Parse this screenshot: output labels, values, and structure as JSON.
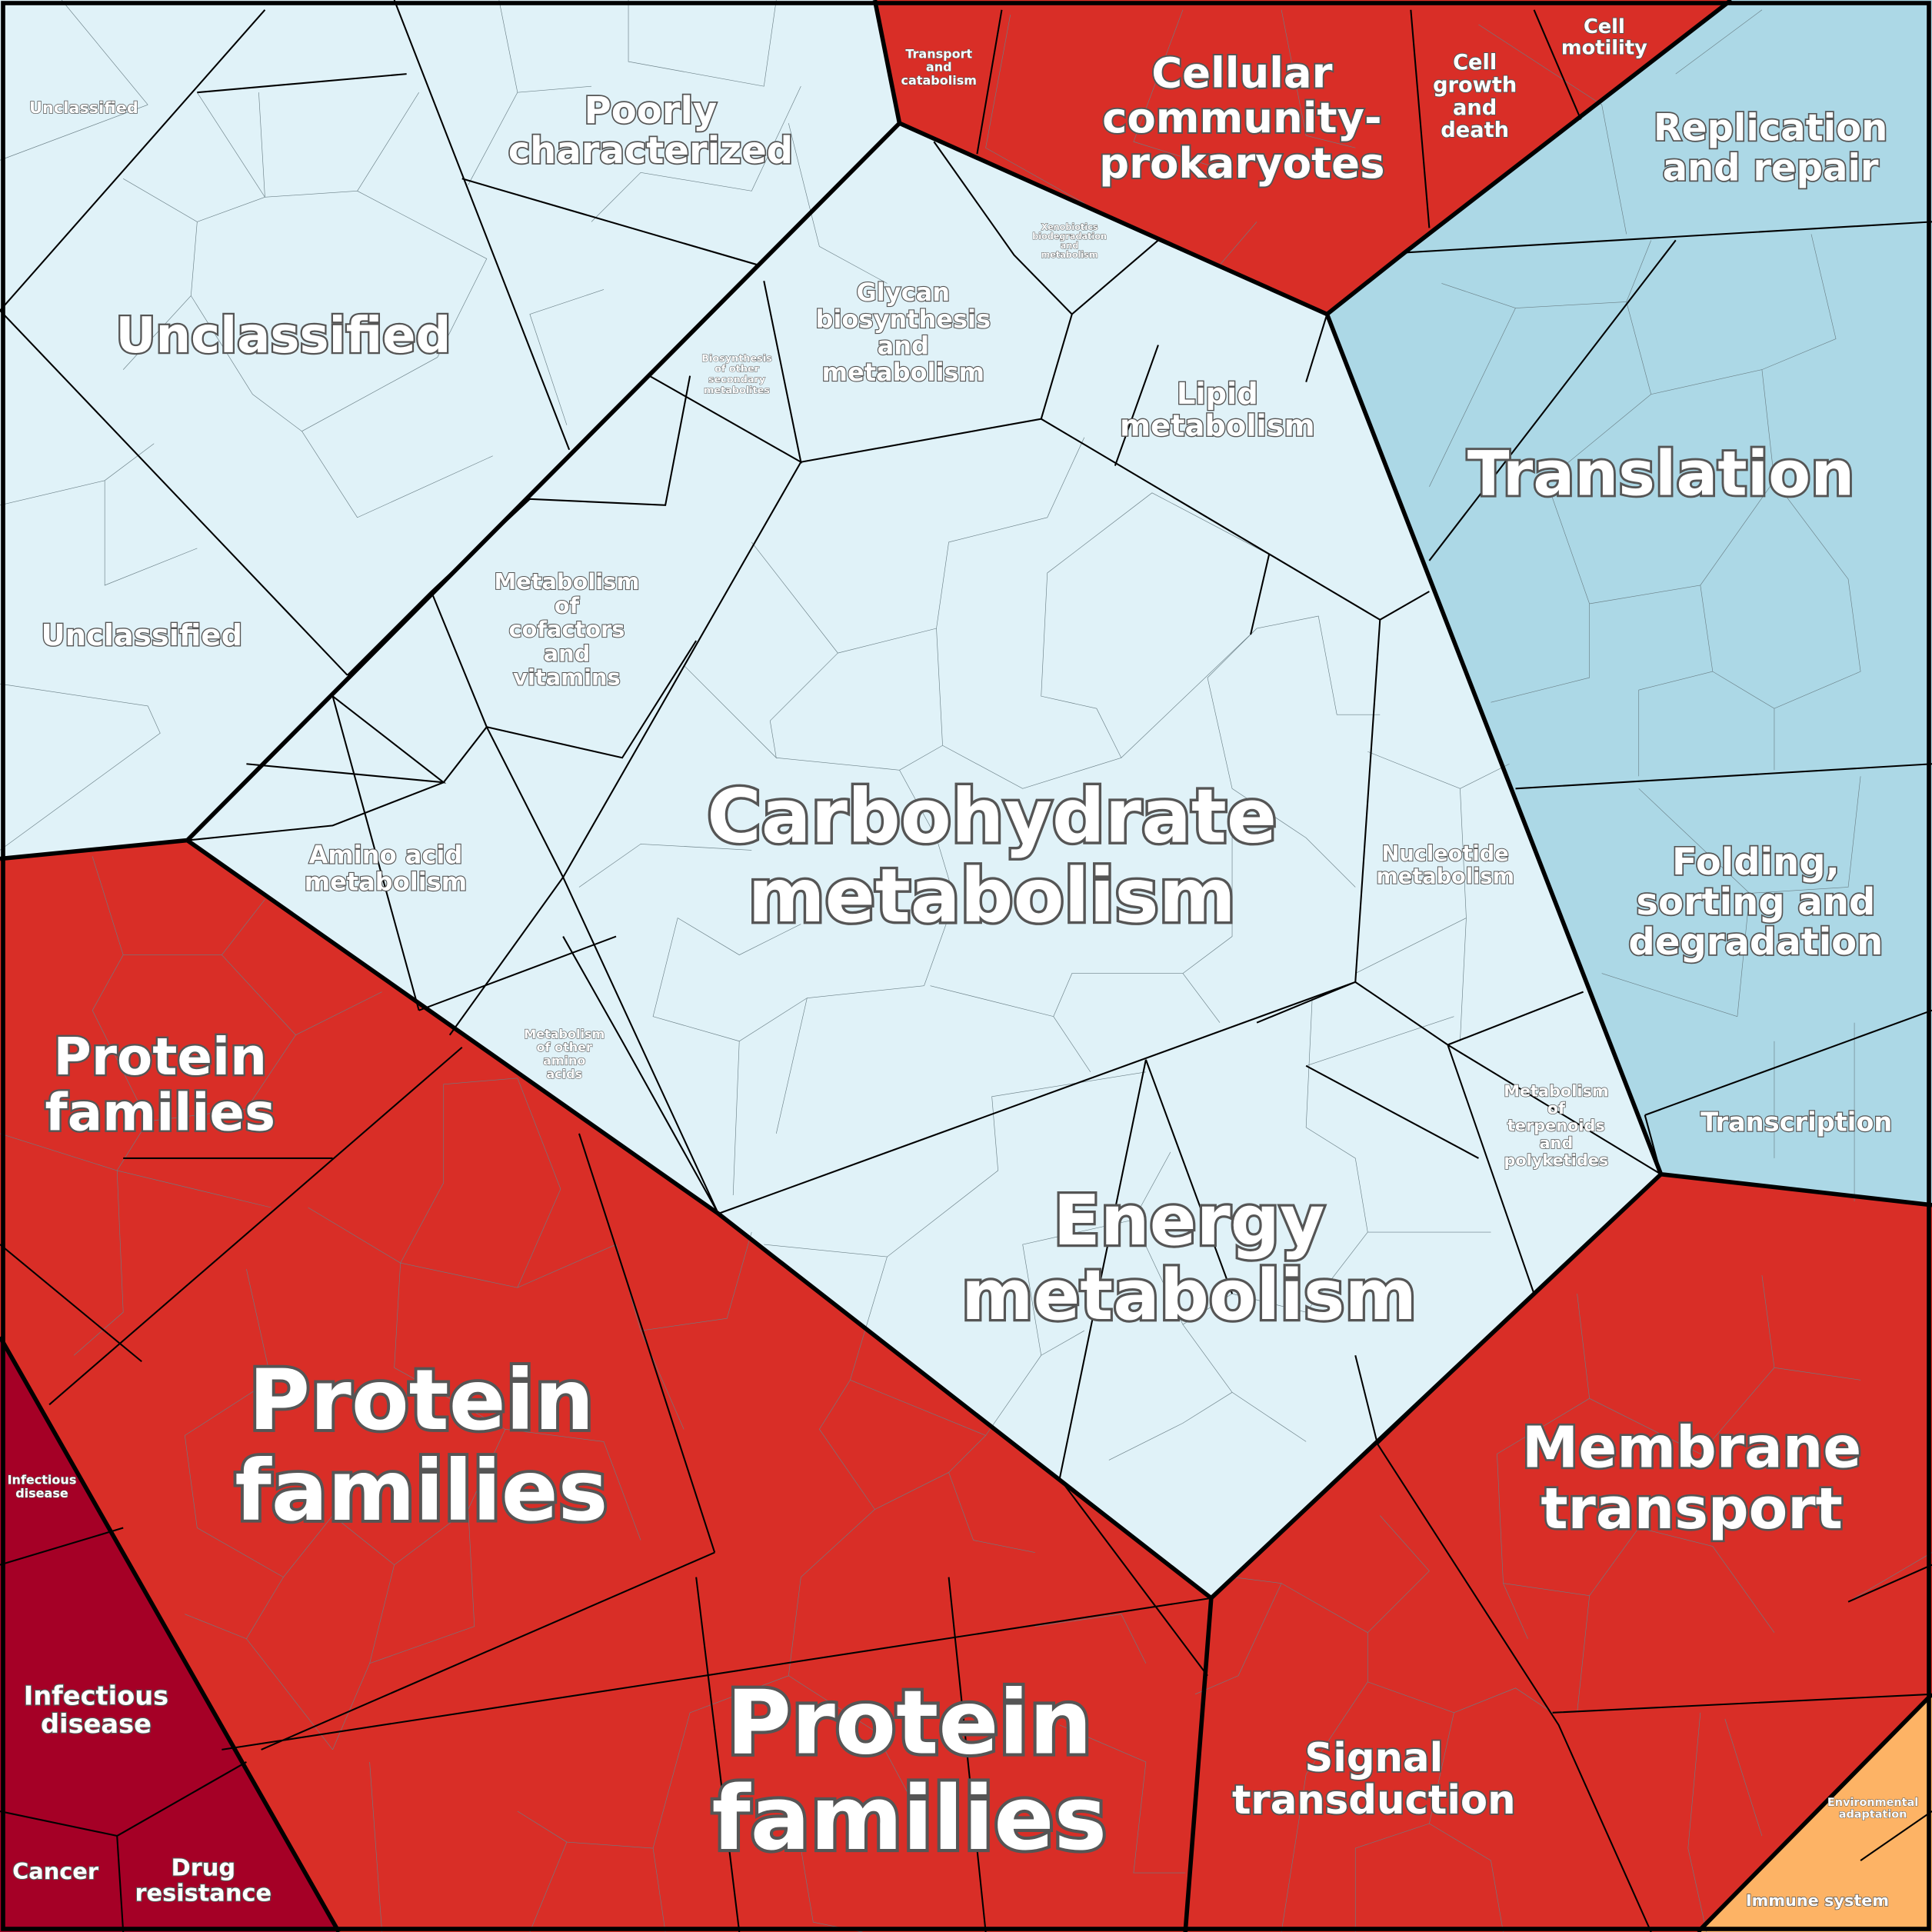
{
  "labels": [
    {
      "lines": [
        "Unclassified"
      ]
    },
    {
      "lines": [
        "Poorly",
        "characterized"
      ]
    },
    {
      "lines": [
        "Unclassified"
      ]
    },
    {
      "lines": [
        "Unclassified"
      ]
    },
    {
      "lines": [
        "Transport",
        "and",
        "catabolism"
      ]
    },
    {
      "lines": [
        "Cellular",
        "community-",
        "prokaryotes"
      ]
    },
    {
      "lines": [
        "Cell",
        "growth",
        "and",
        "death"
      ]
    },
    {
      "lines": [
        "Cell",
        "motility"
      ]
    },
    {
      "lines": [
        "Replication",
        "and repair"
      ]
    },
    {
      "lines": [
        "Xenobiotics",
        "biodegradation",
        "and",
        "metabolism"
      ]
    },
    {
      "lines": [
        "Glycan",
        "biosynthesis",
        "and",
        "metabolism"
      ]
    },
    {
      "lines": [
        "Biosynthesis",
        "of other",
        "secondary",
        "metabolites"
      ]
    },
    {
      "lines": [
        "Lipid",
        "metabolism"
      ]
    },
    {
      "lines": [
        "Translation"
      ]
    },
    {
      "lines": [
        "Metabolism",
        "of",
        "cofactors",
        "and",
        "vitamins"
      ]
    },
    {
      "lines": [
        "Carbohydrate",
        "metabolism"
      ]
    },
    {
      "lines": [
        "Amino acid",
        "metabolism"
      ]
    },
    {
      "lines": [
        "Nucleotide",
        "metabolism"
      ]
    },
    {
      "lines": [
        "Folding,",
        "sorting and",
        "degradation"
      ]
    },
    {
      "lines": [
        "Protein",
        "families"
      ]
    },
    {
      "lines": [
        "Metabolism",
        "of other",
        "amino",
        "acids"
      ]
    },
    {
      "lines": [
        "Metabolism",
        "of",
        "terpenoids",
        "and",
        "polyketides"
      ]
    },
    {
      "lines": [
        "Transcription"
      ]
    },
    {
      "lines": [
        "Energy",
        "metabolism"
      ]
    },
    {
      "lines": [
        "Protein",
        "families"
      ]
    },
    {
      "lines": [
        "Membrane",
        "transport"
      ]
    },
    {
      "lines": [
        "Infectious",
        "disease"
      ]
    },
    {
      "lines": [
        "Infectious",
        "disease"
      ]
    },
    {
      "lines": [
        "Signal",
        "transduction"
      ]
    },
    {
      "lines": [
        "Protein",
        "families"
      ]
    },
    {
      "lines": [
        "Cancer"
      ]
    },
    {
      "lines": [
        "Drug",
        "resistance"
      ]
    },
    {
      "lines": [
        "Environmental",
        "adaptation"
      ]
    },
    {
      "lines": [
        "Immune system"
      ]
    }
  ]
}
